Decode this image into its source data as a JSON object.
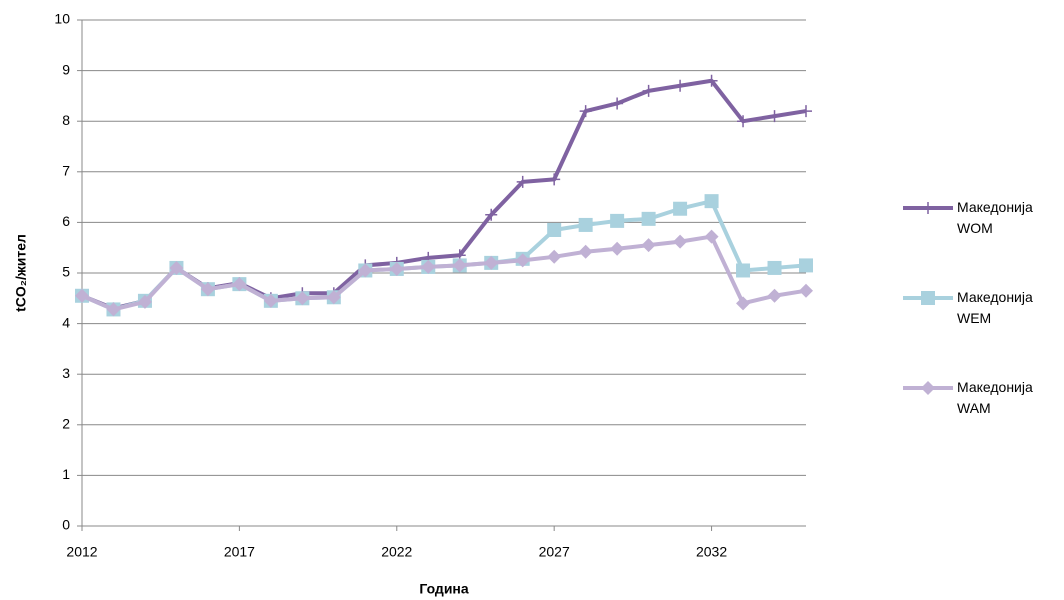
{
  "chart_data": {
    "type": "line",
    "xlabel": "Година",
    "ylabel": "tCO₂/жител",
    "x": [
      2012,
      2013,
      2014,
      2015,
      2016,
      2017,
      2018,
      2019,
      2020,
      2021,
      2022,
      2023,
      2024,
      2025,
      2026,
      2027,
      2028,
      2029,
      2030,
      2031,
      2032,
      2033,
      2034,
      2035
    ],
    "series": [
      {
        "name": "Македонија WOM",
        "color": "#7f62a1",
        "marker": "plus",
        "values": [
          4.55,
          4.3,
          4.45,
          5.1,
          4.7,
          4.8,
          4.5,
          4.6,
          4.6,
          5.15,
          5.2,
          5.3,
          5.35,
          6.15,
          6.8,
          6.85,
          8.2,
          8.35,
          8.6,
          8.7,
          8.8,
          8.0,
          8.1,
          8.2
        ]
      },
      {
        "name": "Македонија WEM",
        "color": "#a9d1de",
        "marker": "square",
        "values": [
          4.55,
          4.28,
          4.45,
          5.1,
          4.68,
          4.78,
          4.45,
          4.5,
          4.52,
          5.05,
          5.08,
          5.12,
          5.15,
          5.2,
          5.28,
          5.85,
          5.95,
          6.03,
          6.07,
          6.27,
          6.42,
          5.05,
          5.1,
          5.15
        ]
      },
      {
        "name": "Македонија WAM",
        "color": "#c0b1d4",
        "marker": "diamond",
        "values": [
          4.55,
          4.28,
          4.43,
          5.1,
          4.68,
          4.78,
          4.45,
          4.5,
          4.52,
          5.05,
          5.08,
          5.12,
          5.15,
          5.2,
          5.25,
          5.32,
          5.42,
          5.48,
          5.55,
          5.62,
          5.72,
          4.4,
          4.55,
          4.65
        ]
      }
    ],
    "xlim": [
      2012,
      2035
    ],
    "xticks": [
      2012,
      2017,
      2022,
      2027,
      2032
    ],
    "ylim": [
      0,
      10
    ],
    "yticks": [
      0,
      1,
      2,
      3,
      4,
      5,
      6,
      7,
      8,
      9,
      10
    ],
    "grid": true,
    "legend": "right"
  }
}
